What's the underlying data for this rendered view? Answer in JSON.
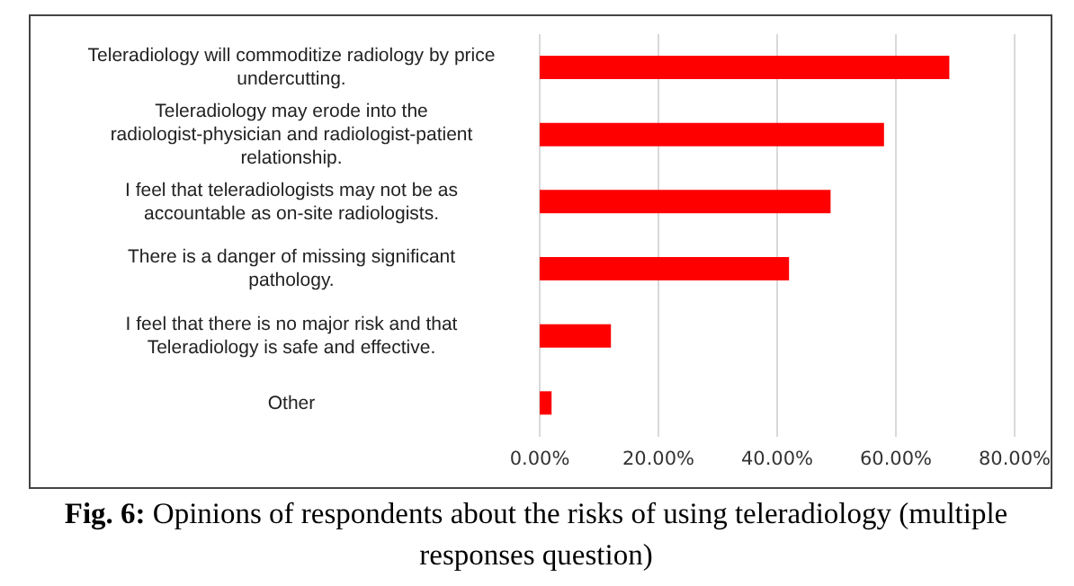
{
  "chart_data": {
    "type": "bar",
    "orientation": "horizontal",
    "title": "Fig. 6: Opinions of respondents about the risks of using teleradiology (multiple responses question)",
    "categories": [
      "Teleradiology will commoditize radiology by price undercutting.",
      "Teleradiology may erode into the radiologist-physician and radiologist-patient relationship.",
      "I feel that teleradiologists may not be as accountable as on-site radiologists.",
      "There is a danger of missing significant pathology.",
      "I feel that there is no major risk and that Teleradiology is safe and effective.",
      "Other"
    ],
    "values": [
      69,
      58,
      49,
      42,
      12,
      2
    ],
    "color": "#ff0000",
    "xlim": [
      0,
      80
    ],
    "xticks": [
      {
        "value": 0,
        "label": "0.00%"
      },
      {
        "value": 20,
        "label": "20.00%"
      },
      {
        "value": 40,
        "label": "40.00%"
      },
      {
        "value": 60,
        "label": "60.00%"
      },
      {
        "value": 80,
        "label": "80.00%"
      }
    ],
    "grid": "x"
  }
}
